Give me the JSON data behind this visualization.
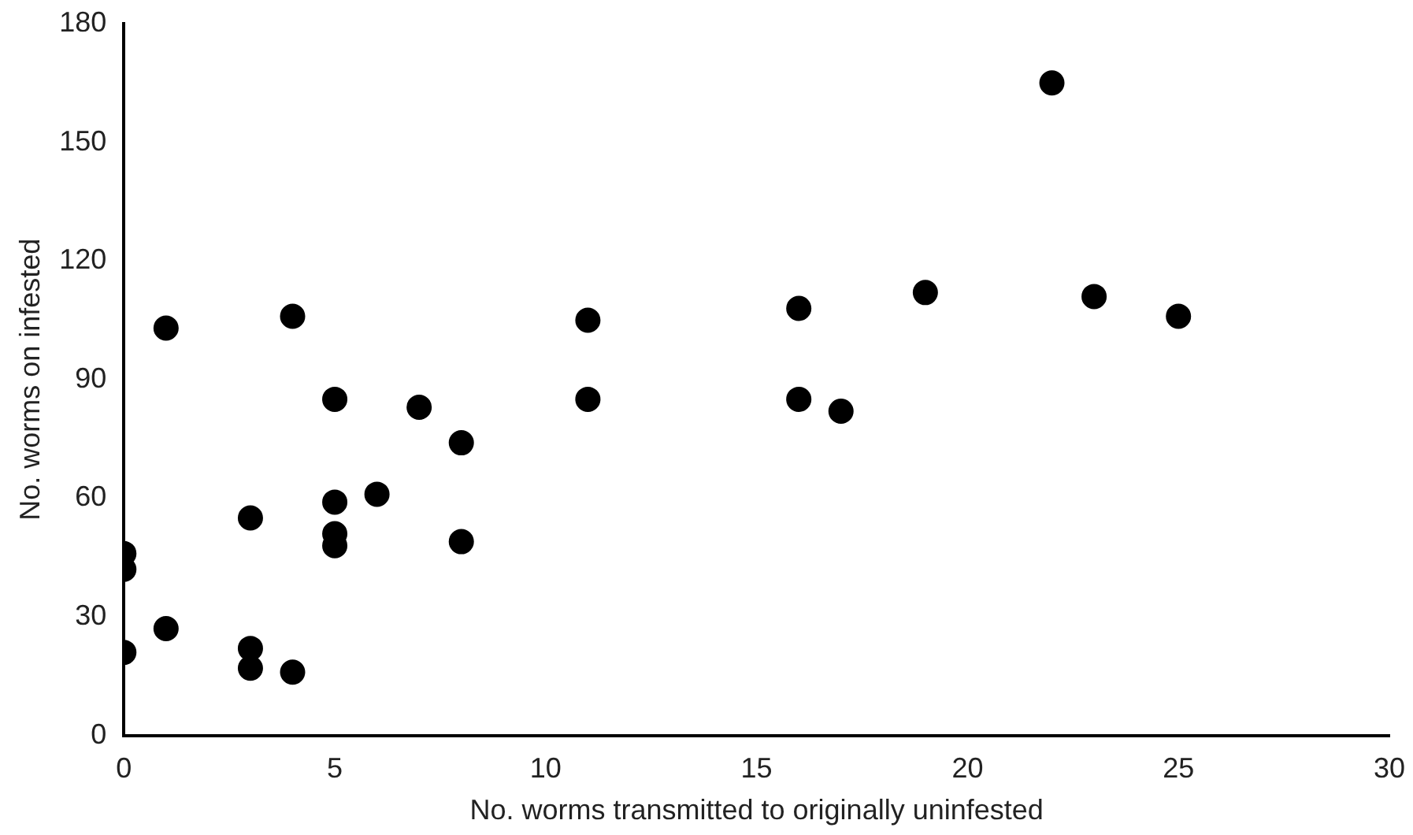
{
  "chart_data": {
    "type": "scatter",
    "xlabel": "No. worms transmitted to originally uninfested",
    "ylabel": "No. worms on infested",
    "x": [
      0,
      0,
      0,
      1,
      1,
      3,
      3,
      3,
      4,
      4,
      5,
      5,
      5,
      5,
      6,
      7,
      8,
      8,
      11,
      11,
      16,
      16,
      17,
      19,
      22,
      23,
      25
    ],
    "values": [
      46,
      42,
      21,
      103,
      27,
      55,
      22,
      17,
      106,
      16,
      85,
      59,
      51,
      48,
      61,
      83,
      74,
      49,
      105,
      85,
      108,
      85,
      82,
      112,
      165,
      111,
      106
    ],
    "color": "#000000",
    "marker": "circle",
    "grid": false,
    "legend": false,
    "xlim": [
      0,
      30
    ],
    "xticks": [
      0,
      5,
      10,
      15,
      20,
      25,
      30
    ],
    "ylim": [
      0,
      180
    ],
    "yticks": [
      0,
      30,
      60,
      90,
      120,
      150,
      180
    ]
  }
}
